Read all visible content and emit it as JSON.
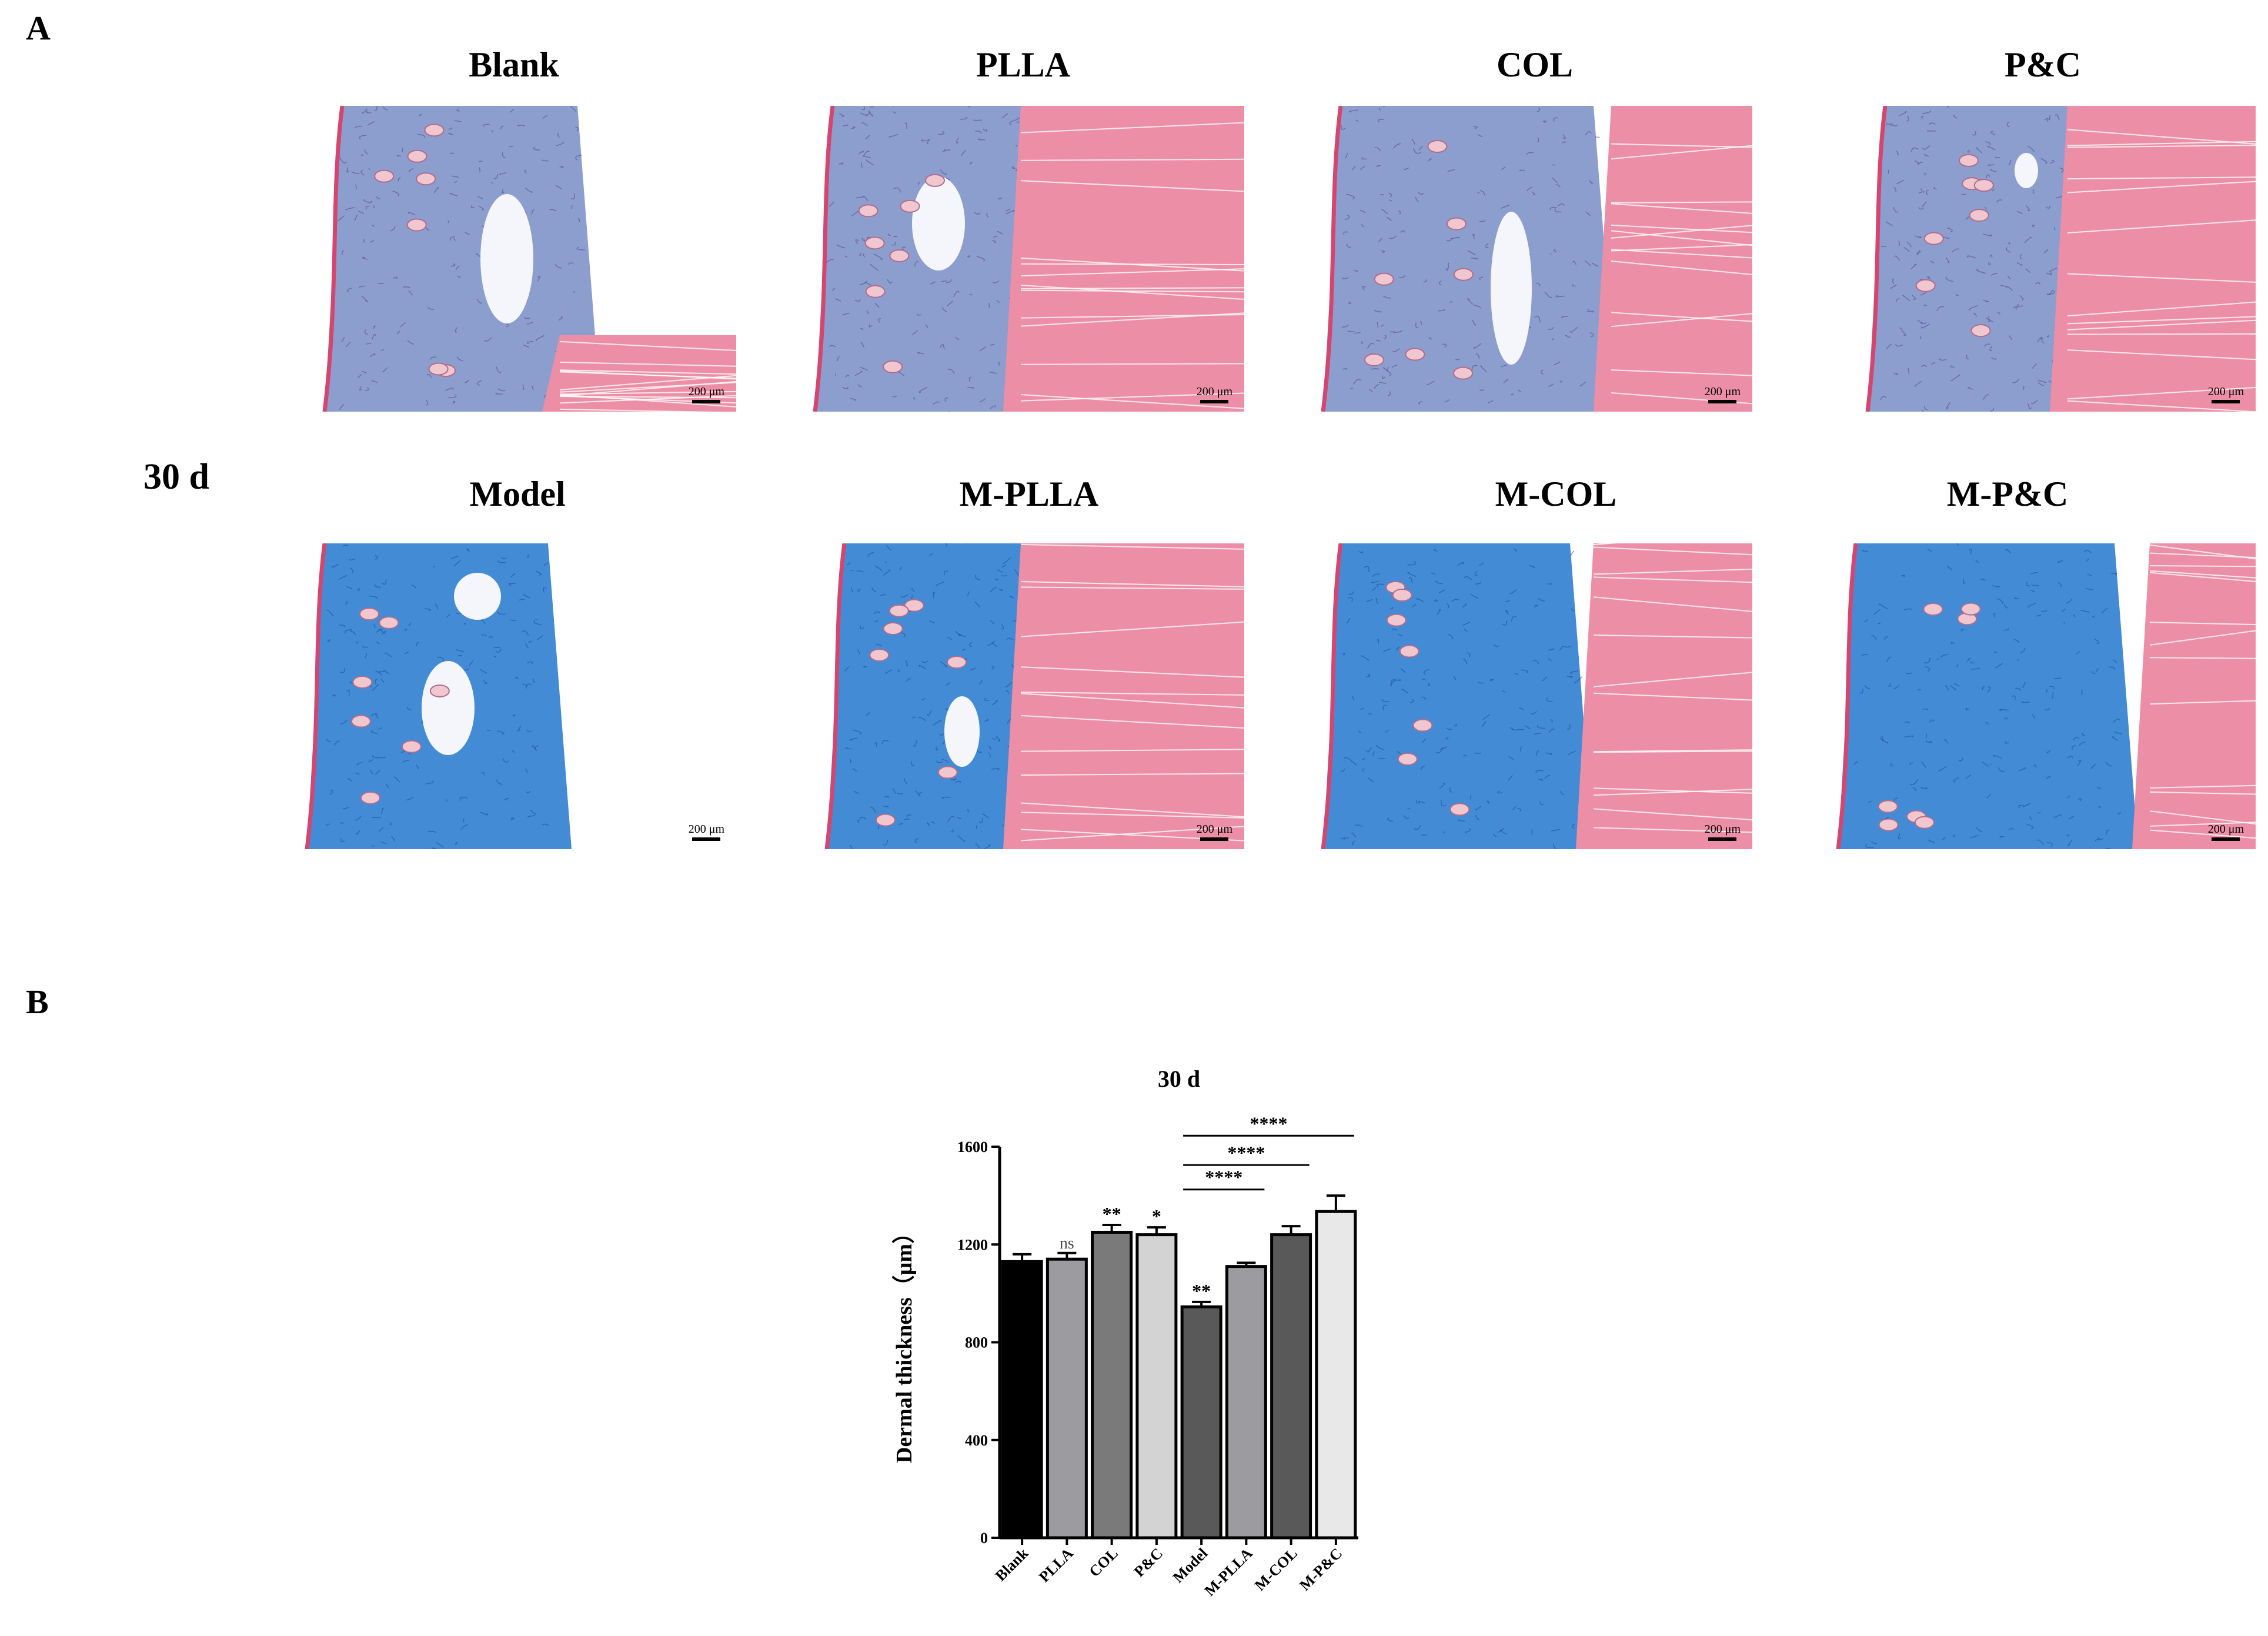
{
  "panel_a_label": "A",
  "panel_b_label": "B",
  "timepoint_label": "30 d",
  "scale_bar_text": "200 μm",
  "tiles_row1": [
    {
      "title": "Blank",
      "variant": "blank"
    },
    {
      "title": "PLLA",
      "variant": "plla"
    },
    {
      "title": "COL",
      "variant": "col"
    },
    {
      "title": "P&C",
      "variant": "pc"
    }
  ],
  "tiles_row2": [
    {
      "title": "Model",
      "variant": "model"
    },
    {
      "title": "M-PLLA",
      "variant": "mplla"
    },
    {
      "title": "M-COL",
      "variant": "mcol"
    },
    {
      "title": "M-P&C",
      "variant": "mpc"
    }
  ],
  "colors": {
    "dermis_light": "#7f93c8",
    "dermis_dark": "#2f7fd0",
    "muscle": "#ec8fa6",
    "epidermis": "#d6456e"
  },
  "chart_data": {
    "type": "bar",
    "title": "30 d",
    "ylabel": "Dermal thickness（μm）",
    "xlabel": "",
    "ylim": [
      0,
      1600
    ],
    "yticks": [
      0,
      400,
      800,
      1200,
      1600
    ],
    "categories": [
      "Blank",
      "PLLA",
      "COL",
      "P&C",
      "Model",
      "M-PLLA",
      "M-COL",
      "M-P&C"
    ],
    "values": [
      1130,
      1140,
      1250,
      1240,
      945,
      1110,
      1240,
      1335
    ],
    "errors": [
      30,
      25,
      30,
      30,
      20,
      15,
      35,
      65
    ],
    "bar_colors": [
      "#000000",
      "#9c9ca0",
      "#7a7a7a",
      "#d3d3d3",
      "#595959",
      "#9c9ca0",
      "#595959",
      "#e8e8e8"
    ],
    "annotations": [
      "",
      "ns",
      "**",
      "*",
      "**",
      "",
      "",
      ""
    ],
    "brackets": [
      {
        "from": "Model",
        "to": "M-PLLA",
        "label": "****"
      },
      {
        "from": "Model",
        "to": "M-COL",
        "label": "****"
      },
      {
        "from": "Model",
        "to": "M-P&C",
        "label": "****"
      }
    ]
  }
}
